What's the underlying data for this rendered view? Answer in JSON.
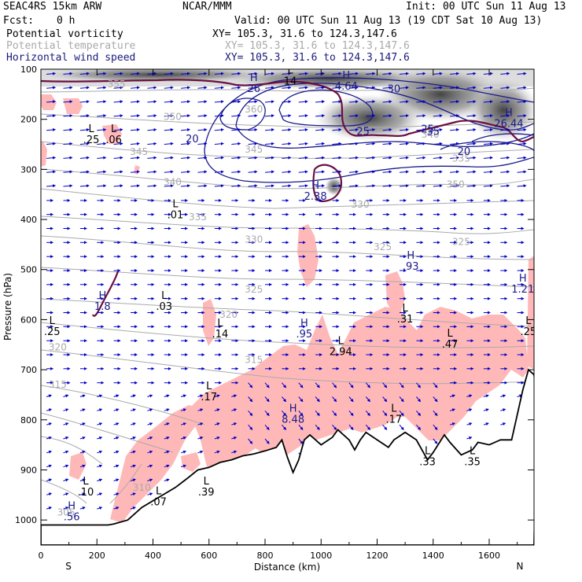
{
  "header": {
    "model": "SEAC4RS 15km ARW",
    "org": "NCAR/MMM",
    "init": "Init: 00 UTC Sun 11 Aug 13",
    "fcst_label": "Fcst:",
    "fcst_value": "0 h",
    "valid": "Valid: 00 UTC Sun 11 Aug 13 (19 CDT Sat 10 Aug 13)",
    "fields": [
      {
        "name": "Potential vorticity",
        "xy": "XY= 105.3, 31.6 to 124.3,147.6",
        "color": "#000000"
      },
      {
        "name": "Potential temperature",
        "xy": "XY= 105.3, 31.6 to 124.3,147.6",
        "color": "#aaaaaa"
      },
      {
        "name": "Horizontal wind speed",
        "xy": "XY= 105.3, 31.6 to 124.3,147.6",
        "color": "#1a1a7a"
      }
    ]
  },
  "chart_data": {
    "type": "cross-section",
    "xlabel": "Distance (km)",
    "ylabel": "Pressure (hPa)",
    "x_ticks": [
      0,
      200,
      400,
      600,
      800,
      1000,
      1200,
      1400,
      1600
    ],
    "y_ticks": [
      100,
      200,
      300,
      400,
      500,
      600,
      700,
      800,
      900,
      1000
    ],
    "xlim": [
      0,
      1760
    ],
    "ylim": [
      1050,
      100
    ],
    "endpoint_labels": {
      "left": "S",
      "right": "N"
    },
    "terrain": [
      [
        0,
        1010
      ],
      [
        100,
        1010
      ],
      [
        240,
        1010
      ],
      [
        260,
        1008
      ],
      [
        310,
        1000
      ],
      [
        360,
        975
      ],
      [
        420,
        955
      ],
      [
        480,
        935
      ],
      [
        520,
        918
      ],
      [
        560,
        900
      ],
      [
        600,
        895
      ],
      [
        640,
        885
      ],
      [
        680,
        880
      ],
      [
        720,
        872
      ],
      [
        760,
        868
      ],
      [
        800,
        862
      ],
      [
        840,
        855
      ],
      [
        860,
        840
      ],
      [
        880,
        875
      ],
      [
        900,
        905
      ],
      [
        920,
        880
      ],
      [
        940,
        840
      ],
      [
        960,
        830
      ],
      [
        1000,
        850
      ],
      [
        1040,
        835
      ],
      [
        1060,
        820
      ],
      [
        1100,
        840
      ],
      [
        1120,
        860
      ],
      [
        1140,
        840
      ],
      [
        1160,
        825
      ],
      [
        1200,
        840
      ],
      [
        1240,
        855
      ],
      [
        1260,
        840
      ],
      [
        1300,
        825
      ],
      [
        1340,
        840
      ],
      [
        1380,
        880
      ],
      [
        1400,
        865
      ],
      [
        1440,
        830
      ],
      [
        1460,
        845
      ],
      [
        1500,
        870
      ],
      [
        1540,
        860
      ],
      [
        1560,
        845
      ],
      [
        1600,
        850
      ],
      [
        1640,
        840
      ],
      [
        1680,
        840
      ],
      [
        1720,
        740
      ],
      [
        1740,
        700
      ],
      [
        1760,
        710
      ],
      [
        1770,
        760
      ]
    ],
    "pv_min_max_labels": [
      {
        "type": "H",
        "value": "26",
        "x": 760,
        "p": 130
      },
      {
        "type": "L",
        "value": "14",
        "x": 890,
        "p": 115
      },
      {
        "type": "H",
        "value": "4.64",
        "x": 1090,
        "p": 125
      },
      {
        "type": "L",
        "value": ".25",
        "x": 180,
        "p": 232
      },
      {
        "type": "L",
        "value": ".06",
        "x": 260,
        "p": 232
      },
      {
        "type": "H",
        "value": "2.38",
        "x": 980,
        "p": 345
      },
      {
        "type": "H",
        "value": "26.44",
        "x": 1670,
        "p": 200
      },
      {
        "type": "H",
        "value": "1.8",
        "x": 220,
        "p": 565
      },
      {
        "type": "L",
        "value": ".03",
        "x": 440,
        "p": 565
      },
      {
        "type": "L",
        "value": ".01",
        "x": 480,
        "p": 382
      },
      {
        "type": "H",
        "value": ".93",
        "x": 1320,
        "p": 485
      },
      {
        "type": "H",
        "value": "1.21",
        "x": 1720,
        "p": 530
      },
      {
        "type": "L",
        "value": ".25",
        "x": 40,
        "p": 615
      },
      {
        "type": "L",
        "value": ".14",
        "x": 640,
        "p": 620
      },
      {
        "type": "H",
        "value": ".95",
        "x": 940,
        "p": 620
      },
      {
        "type": "L",
        "value": "2.94",
        "x": 1070,
        "p": 655
      },
      {
        "type": "L",
        "value": ".31",
        "x": 1300,
        "p": 590
      },
      {
        "type": "L",
        "value": ".47",
        "x": 1460,
        "p": 640
      },
      {
        "type": "L",
        "value": ".25",
        "x": 1740,
        "p": 615
      },
      {
        "type": "L",
        "value": ".17",
        "x": 600,
        "p": 745
      },
      {
        "type": "H",
        "value": "8.48",
        "x": 900,
        "p": 790
      },
      {
        "type": "L",
        "value": ".17",
        "x": 1260,
        "p": 790
      },
      {
        "type": "L",
        "value": ".10",
        "x": 160,
        "p": 935
      },
      {
        "type": "L",
        "value": ".07",
        "x": 420,
        "p": 955
      },
      {
        "type": "L",
        "value": ".39",
        "x": 590,
        "p": 935
      },
      {
        "type": "H",
        "value": ".56",
        "x": 110,
        "p": 985
      },
      {
        "type": "L",
        "value": ".35",
        "x": 1540,
        "p": 875
      },
      {
        "type": "L",
        "value": ".33",
        "x": 1380,
        "p": 875
      }
    ],
    "theta_labels": [
      {
        "value": "355",
        "x": 270,
        "p": 130
      },
      {
        "value": "350",
        "x": 470,
        "p": 195
      },
      {
        "value": "345",
        "x": 350,
        "p": 265
      },
      {
        "value": "345",
        "x": 760,
        "p": 260
      },
      {
        "value": "340",
        "x": 470,
        "p": 325
      },
      {
        "value": "335",
        "x": 560,
        "p": 395
      },
      {
        "value": "330",
        "x": 1140,
        "p": 370
      },
      {
        "value": "350",
        "x": 1480,
        "p": 330
      },
      {
        "value": "330",
        "x": 760,
        "p": 440
      },
      {
        "value": "325",
        "x": 1220,
        "p": 455
      },
      {
        "value": "325",
        "x": 1500,
        "p": 445
      },
      {
        "value": "325",
        "x": 760,
        "p": 540
      },
      {
        "value": "320",
        "x": 670,
        "p": 590
      },
      {
        "value": "320",
        "x": 60,
        "p": 655
      },
      {
        "value": "315",
        "x": 760,
        "p": 680
      },
      {
        "value": "315",
        "x": 60,
        "p": 730
      },
      {
        "value": "310",
        "x": 360,
        "p": 935
      },
      {
        "value": "305",
        "x": 90,
        "p": 985
      },
      {
        "value": "360",
        "x": 760,
        "p": 180
      },
      {
        "value": "340",
        "x": 1390,
        "p": 230
      },
      {
        "value": "335",
        "x": 1500,
        "p": 278
      }
    ],
    "wind_labels": [
      {
        "value": "20",
        "x": 540,
        "p": 240
      },
      {
        "value": "25",
        "x": 1150,
        "p": 225
      },
      {
        "value": "30",
        "x": 1260,
        "p": 140
      },
      {
        "value": "25",
        "x": 1380,
        "p": 220
      },
      {
        "value": "20",
        "x": 1510,
        "p": 265
      },
      {
        "value": "35",
        "x": 1400,
        "p": 225
      }
    ],
    "colors": {
      "pv_fill": "#ffb8b8",
      "pv_contour": "#6b1040",
      "theta": "#aaaaaa",
      "wind": "#1a1a8a",
      "vectors": "#0000cc",
      "terrain": "#000000"
    }
  }
}
